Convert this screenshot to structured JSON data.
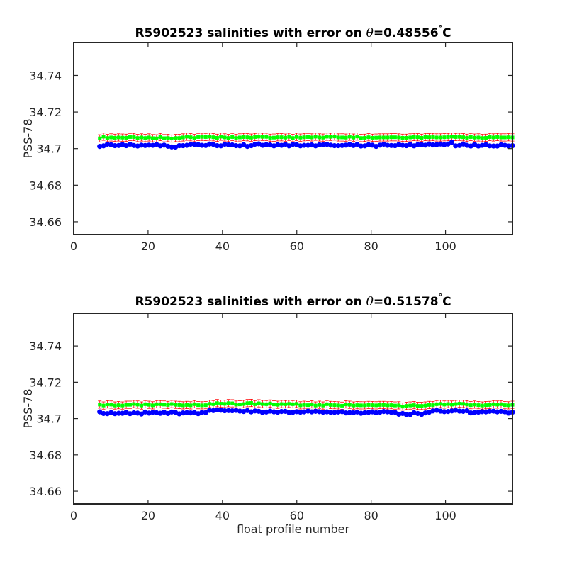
{
  "chart_data": [
    {
      "type": "scatter",
      "title_prefix": "R5902523 salinities with error on ",
      "title_theta": "θ",
      "title_value": "=0.48556",
      "title_degree": "°",
      "title_unit": "C",
      "xlabel": "",
      "ylabel": "PSS-78",
      "xlim": [
        0,
        118
      ],
      "ylim": [
        34.653,
        34.758
      ],
      "xticks": [
        0,
        20,
        40,
        60,
        80,
        100
      ],
      "xtick_labels": [
        "0",
        "20",
        "40",
        "60",
        "80",
        "100"
      ],
      "yticks": [
        34.66,
        34.68,
        34.7,
        34.72,
        34.74
      ],
      "ytick_labels": [
        "34.66",
        "34.68",
        "34.7",
        "34.72",
        "34.74"
      ],
      "grid": false,
      "x_start": 7,
      "x_end": 118,
      "gap_after": 63,
      "series": [
        {
          "color": "#0000ff",
          "marker": "circle",
          "values": [
            34.7012,
            34.7015,
            34.7024,
            34.7021,
            34.7016,
            34.7017,
            34.7022,
            34.7016,
            34.7024,
            34.7017,
            34.7014,
            34.7019,
            34.7017,
            34.7019,
            34.7018,
            34.7023,
            34.7015,
            34.7019,
            34.7013,
            34.7009,
            34.7008,
            34.7016,
            34.7016,
            34.7018,
            34.7024,
            34.7023,
            34.7022,
            34.7018,
            34.7017,
            34.7025,
            34.7023,
            34.7016,
            34.7015,
            34.7024,
            34.7021,
            34.702,
            34.7016,
            34.7015,
            34.7021,
            34.7012,
            34.7016,
            34.7024,
            34.7026,
            34.7018,
            34.7022,
            34.702,
            34.7015,
            34.7021,
            34.7018,
            34.7024,
            34.7015,
            34.7023,
            34.7022,
            34.7015,
            34.7018,
            34.7018,
            34.702,
            34.7015,
            34.7021,
            34.7021,
            34.7023,
            34.7019,
            34.7016,
            34.7016,
            34.7017,
            34.7019,
            34.7023,
            34.7017,
            34.7023,
            34.7014,
            34.7015,
            34.7021,
            34.7019,
            34.7012,
            34.7019,
            34.7024,
            34.7018,
            34.7017,
            34.7016,
            34.7023,
            34.7018,
            34.7016,
            34.7023,
            34.7015,
            34.7022,
            34.7022,
            34.7019,
            34.7025,
            34.702,
            34.7022,
            34.7025,
            34.7021,
            34.7025,
            34.7035,
            34.7015,
            34.7017,
            34.7025,
            34.7018,
            34.7014,
            34.7023,
            34.7014,
            34.7018,
            34.7022,
            34.7015,
            34.7014,
            34.7014,
            34.7021,
            34.7018,
            34.7014,
            34.7016
          ]
        },
        {
          "color": "#00ff00",
          "marker": "square",
          "values": [
            34.7056,
            34.7065,
            34.7058,
            34.7061,
            34.7059,
            34.7061,
            34.706,
            34.7059,
            34.7063,
            34.7063,
            34.7058,
            34.7061,
            34.7058,
            34.7061,
            34.7057,
            34.7056,
            34.7063,
            34.7057,
            34.7058,
            34.7055,
            34.7058,
            34.7058,
            34.7061,
            34.7065,
            34.7062,
            34.7058,
            34.7063,
            34.7064,
            34.7063,
            34.7065,
            34.7062,
            34.7059,
            34.7065,
            34.7061,
            34.7058,
            34.7063,
            34.7058,
            34.7061,
            34.7063,
            34.7062,
            34.706,
            34.7063,
            34.7065,
            34.7064,
            34.7064,
            34.7059,
            34.706,
            34.7062,
            34.7062,
            34.706,
            34.7064,
            34.7058,
            34.7064,
            34.706,
            34.7062,
            34.7063,
            34.7061,
            34.7065,
            34.7061,
            34.706,
            34.7065,
            34.7064,
            34.7066,
            34.7061,
            34.7061,
            34.706,
            34.7065,
            34.706,
            34.7066,
            34.7058,
            34.7059,
            34.7062,
            34.7059,
            34.706,
            34.7061,
            34.7061,
            34.7061,
            34.7062,
            34.7062,
            34.7061,
            34.7059,
            34.7059,
            34.7061,
            34.7063,
            34.7062,
            34.7059,
            34.7063,
            34.7062,
            34.7063,
            34.7061,
            34.7061,
            34.7062,
            34.7063,
            34.7065,
            34.7063,
            34.7064,
            34.7062,
            34.7059,
            34.7063,
            34.706,
            34.7061,
            34.7058,
            34.7059,
            34.7063,
            34.7061,
            34.7063,
            34.7061,
            34.7061,
            34.7062,
            34.7061
          ],
          "error": 0.002
        }
      ]
    },
    {
      "type": "scatter",
      "title_prefix": "R5902523 salinities with error on ",
      "title_theta": "θ",
      "title_value": "=0.51578",
      "title_degree": "°",
      "title_unit": "C",
      "xlabel": "float profile number",
      "ylabel": "PSS-78",
      "xlim": [
        0,
        118
      ],
      "ylim": [
        34.653,
        34.758
      ],
      "xticks": [
        0,
        20,
        40,
        60,
        80,
        100
      ],
      "xtick_labels": [
        "0",
        "20",
        "40",
        "60",
        "80",
        "100"
      ],
      "yticks": [
        34.66,
        34.68,
        34.7,
        34.72,
        34.74
      ],
      "ytick_labels": [
        "34.66",
        "34.68",
        "34.7",
        "34.72",
        "34.74"
      ],
      "grid": false,
      "x_start": 7,
      "x_end": 118,
      "gap_after": 63,
      "series": [
        {
          "color": "#0000ff",
          "marker": "circle",
          "values": [
            34.7037,
            34.7028,
            34.7027,
            34.7033,
            34.7027,
            34.7029,
            34.7029,
            34.7035,
            34.7027,
            34.7032,
            34.703,
            34.7025,
            34.7036,
            34.703,
            34.7034,
            34.7032,
            34.7029,
            34.7035,
            34.7028,
            34.7036,
            34.7034,
            34.7026,
            34.7031,
            34.7033,
            34.7031,
            34.7034,
            34.7027,
            34.7034,
            34.7033,
            34.7045,
            34.7044,
            34.7048,
            34.7046,
            34.7043,
            34.7044,
            34.7043,
            34.7045,
            34.7041,
            34.7039,
            34.7044,
            34.7037,
            34.7042,
            34.704,
            34.7033,
            34.7036,
            34.7041,
            34.7037,
            34.7035,
            34.7039,
            34.704,
            34.7033,
            34.7034,
            34.7038,
            34.7035,
            34.7037,
            34.7041,
            34.7037,
            34.704,
            34.7038,
            34.7035,
            34.7037,
            34.7034,
            34.7034,
            34.7036,
            34.7038,
            34.7031,
            34.7033,
            34.7032,
            34.7036,
            34.7029,
            34.7032,
            34.7034,
            34.7037,
            34.7032,
            34.7035,
            34.7039,
            34.7037,
            34.7034,
            34.7034,
            34.7024,
            34.7028,
            34.7022,
            34.7022,
            34.7032,
            34.7028,
            34.7023,
            34.7031,
            34.7035,
            34.7042,
            34.7045,
            34.7041,
            34.7038,
            34.7039,
            34.7042,
            34.7045,
            34.7041,
            34.704,
            34.7043,
            34.7031,
            34.7034,
            34.7035,
            34.7038,
            34.7037,
            34.704,
            34.7041,
            34.7037,
            34.704,
            34.7037,
            34.703,
            34.7035
          ]
        },
        {
          "color": "#00ff00",
          "marker": "square",
          "values": [
            34.7077,
            34.7072,
            34.7078,
            34.7077,
            34.7072,
            34.7074,
            34.7072,
            34.7076,
            34.7076,
            34.708,
            34.7077,
            34.7072,
            34.7079,
            34.7076,
            34.7073,
            34.7079,
            34.7079,
            34.7077,
            34.7075,
            34.708,
            34.7076,
            34.7075,
            34.7073,
            34.7075,
            34.7073,
            34.7079,
            34.7074,
            34.7073,
            34.7074,
            34.7081,
            34.7079,
            34.7085,
            34.7082,
            34.7081,
            34.7085,
            34.7084,
            34.7077,
            34.7078,
            34.708,
            34.7085,
            34.7086,
            34.7079,
            34.7084,
            34.708,
            34.7079,
            34.7083,
            34.7078,
            34.7076,
            34.708,
            34.7079,
            34.7081,
            34.7079,
            34.7081,
            34.7073,
            34.7076,
            34.7074,
            34.7078,
            34.7072,
            34.7076,
            34.7072,
            34.7079,
            34.7075,
            34.7074,
            34.7073,
            34.7071,
            34.7078,
            34.7076,
            34.7072,
            34.7074,
            34.7073,
            34.7073,
            34.7075,
            34.7074,
            34.7073,
            34.7075,
            34.7075,
            34.7073,
            34.7074,
            34.7072,
            34.7073,
            34.7066,
            34.707,
            34.7072,
            34.7074,
            34.707,
            34.707,
            34.7072,
            34.7075,
            34.7074,
            34.7079,
            34.7081,
            34.7077,
            34.708,
            34.7077,
            34.708,
            34.7082,
            34.7081,
            34.7078,
            34.7074,
            34.7077,
            34.7074,
            34.7072,
            34.7074,
            34.7075,
            34.7079,
            34.7077,
            34.7079,
            34.7074,
            34.7073,
            34.7076
          ],
          "error": 0.002
        }
      ]
    }
  ]
}
